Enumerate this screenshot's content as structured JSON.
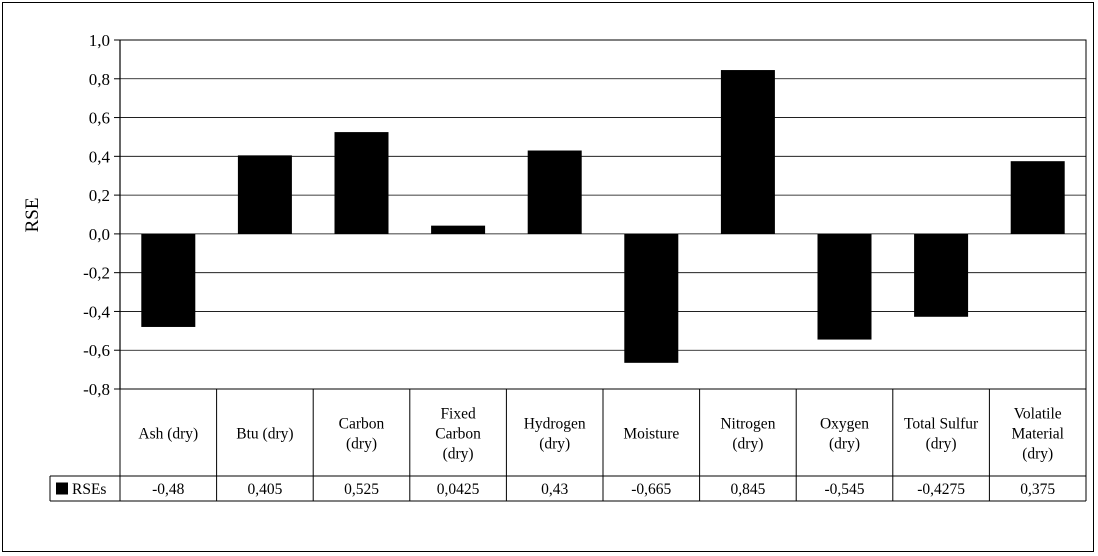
{
  "chart_data": {
    "type": "bar",
    "title": "",
    "xlabel": "",
    "ylabel": "RSE",
    "ylim": [
      -0.8,
      1.0
    ],
    "yticks": [
      "1,0",
      "0,8",
      "0,6",
      "0,4",
      "0,2",
      "0,0",
      "-0,2",
      "-0,4",
      "-0,6",
      "-0,8"
    ],
    "grid": true,
    "legend": "data-table",
    "categories": [
      [
        "Ash (dry)"
      ],
      [
        "Btu (dry)"
      ],
      [
        "Carbon",
        "(dry)"
      ],
      [
        "Fixed",
        "Carbon",
        "(dry)"
      ],
      [
        "Hydrogen",
        "(dry)"
      ],
      [
        "Moisture"
      ],
      [
        "Nitrogen",
        "(dry)"
      ],
      [
        "Oxygen",
        "(dry)"
      ],
      [
        "Total Sulfur",
        "(dry)"
      ],
      [
        "Volatile",
        "Material",
        "(dry)"
      ]
    ],
    "series": [
      {
        "name": "RSEs",
        "color": "#000000",
        "values": [
          -0.48,
          0.405,
          0.525,
          0.0425,
          0.43,
          -0.665,
          0.845,
          -0.545,
          -0.4275,
          0.375
        ],
        "labels": [
          "-0,48",
          "0,405",
          "0,525",
          "0,0425",
          "0,43",
          "-0,665",
          "0,845",
          "-0,545",
          "-0,4275",
          "0,375"
        ]
      }
    ]
  }
}
